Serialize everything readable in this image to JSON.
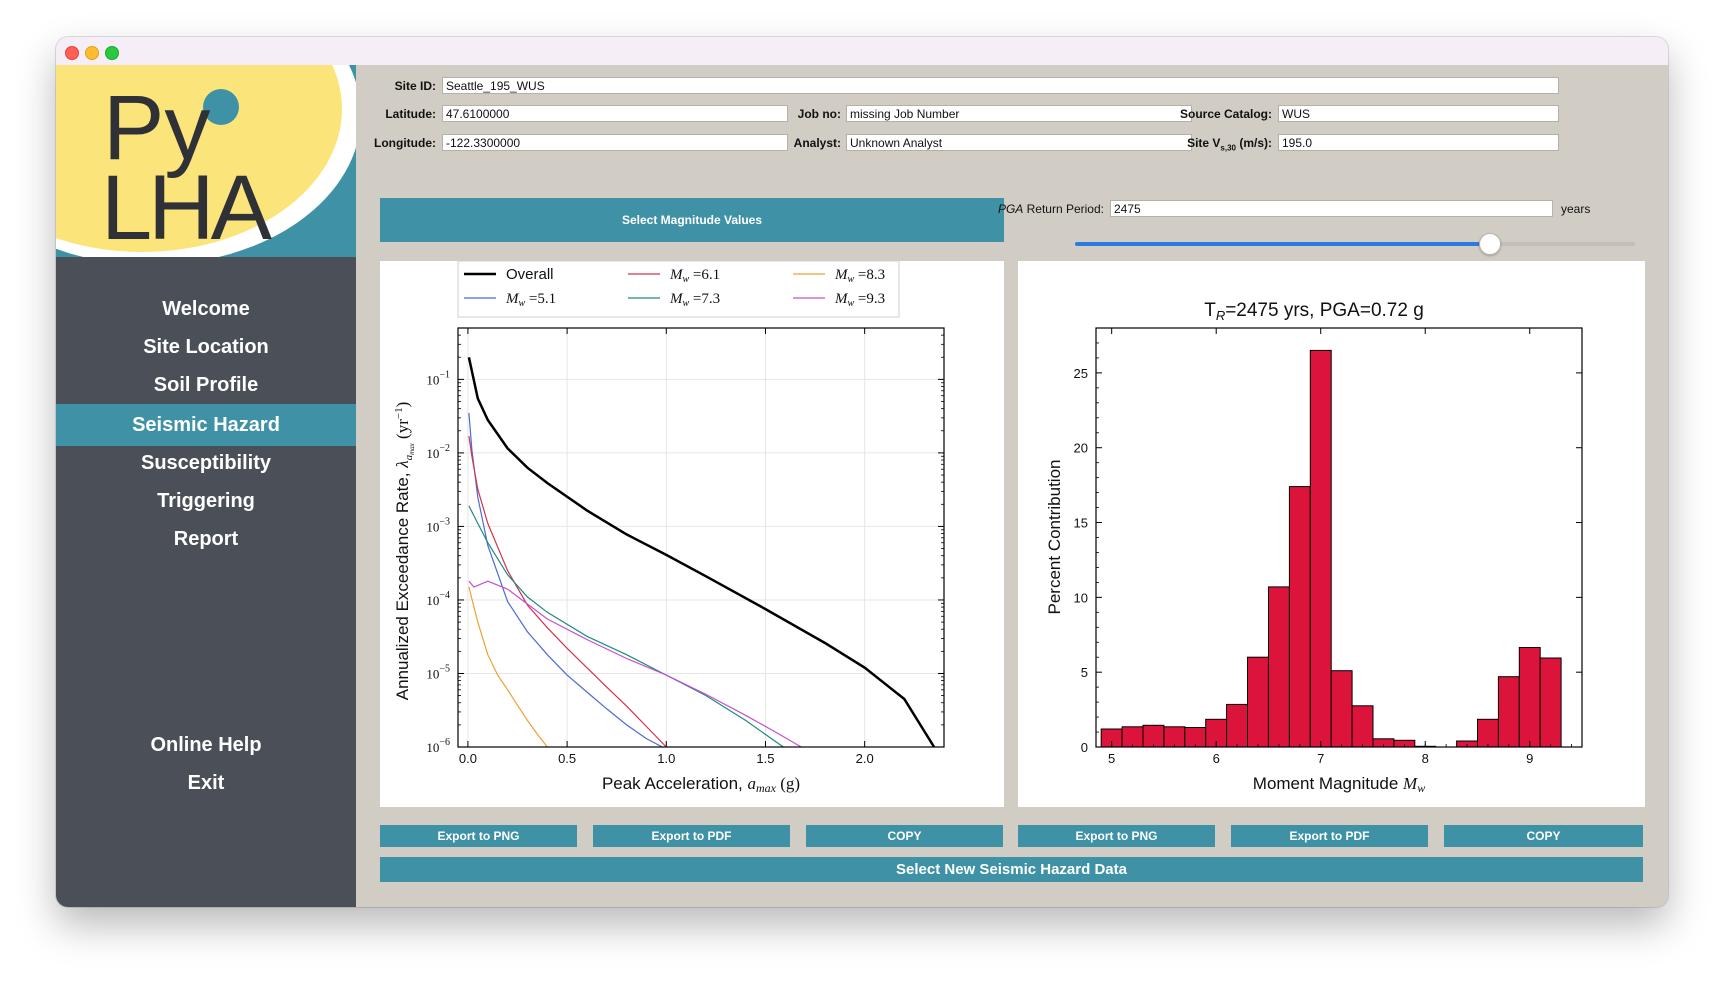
{
  "nav": {
    "items": [
      "Welcome",
      "Site Location",
      "Soil Profile",
      "Seismic Hazard",
      "Susceptibility",
      "Triggering",
      "Report"
    ],
    "bottom_items": [
      "Online Help",
      "Exit"
    ],
    "active": "Seismic Hazard"
  },
  "logo": {
    "text_py": "Py",
    "text_lha": "LHA"
  },
  "form": {
    "site_id_label": "Site ID:",
    "site_id": "Seattle_195_WUS",
    "latitude_label": "Latitude:",
    "latitude": "47.6100000",
    "longitude_label": "Longitude:",
    "longitude": "-122.3300000",
    "job_no_label": "Job no:",
    "job_no": "missing Job Number",
    "analyst_label": "Analyst:",
    "analyst": "Unknown Analyst",
    "source_catalog_label": "Source Catalog:",
    "source_catalog": "WUS",
    "site_vs_label_prefix": "Site V",
    "site_vs_label_sub": "s,30",
    "site_vs_label_suffix": " (m/s):",
    "site_vs": "195.0"
  },
  "controls": {
    "select_magnitude_label": "Select Magnitude Values",
    "return_period_label_italic": "PGA",
    "return_period_label": " Return Period:",
    "return_period_value": "2475",
    "return_period_unit": "years",
    "slider_fraction": 0.74
  },
  "buttons": {
    "export_png": "Export to PNG",
    "export_pdf": "Export to PDF",
    "copy": "COPY",
    "select_new": "Select New Seismic Hazard Data"
  },
  "colors": {
    "accent": "#3f92a6",
    "sidebar": "#4b5058",
    "logo_yellow": "#fbe57b",
    "bar": "#dc143c",
    "slider": "#2d7be0"
  },
  "chart_data": [
    {
      "type": "line",
      "xlabel": "Peak Acceleration, a_max (g)",
      "xlabel_main": "Peak Acceleration, ",
      "xlabel_var": "a",
      "xlabel_sub": "max",
      "xlabel_unit": " (g)",
      "ylabel_main": "Annualized Exceedance Rate, ",
      "ylabel_var": "λ",
      "ylabel_sub": "a",
      "ylabel_sub2": "max",
      "ylabel_unit": " (yr",
      "ylabel_exp": "−1",
      "ylabel_close": ")",
      "x_scale": "linear",
      "y_scale": "log",
      "xlim": [
        -0.05,
        2.4
      ],
      "ylim": [
        1e-06,
        0.5
      ],
      "xticks": [
        "0.0",
        "0.5",
        "1.0",
        "1.5",
        "2.0"
      ],
      "yticks_exp": [
        "−1",
        "−2",
        "−3",
        "−4",
        "−5",
        "−6"
      ],
      "ytick_base": "10",
      "grid": true,
      "legend_placement": "top",
      "series": [
        {
          "name": "Overall",
          "legend_var": "",
          "legend_val": "",
          "color": "#000000",
          "width": 2.5,
          "x": [
            0.005,
            0.05,
            0.1,
            0.2,
            0.3,
            0.4,
            0.6,
            0.8,
            1.0,
            1.2,
            1.5,
            1.8,
            2.0,
            2.2,
            2.35
          ],
          "y": [
            0.2,
            0.055,
            0.028,
            0.0115,
            0.0063,
            0.0039,
            0.00165,
            0.00078,
            0.00041,
            0.00021,
            7.5e-05,
            2.6e-05,
            1.2e-05,
            4.5e-06,
            1e-06
          ]
        },
        {
          "name": "Mw=5.1",
          "legend_var": "M",
          "legend_sub": "w",
          "legend_val": "5.1",
          "color": "#4a6cd4",
          "width": 1.2,
          "x": [
            0.005,
            0.02,
            0.05,
            0.1,
            0.2,
            0.3,
            0.4,
            0.5,
            0.6,
            0.7,
            0.8,
            0.9,
            0.98
          ],
          "y": [
            0.035,
            0.011,
            0.0025,
            0.00055,
            9.5e-05,
            3.7e-05,
            1.8e-05,
            9.5e-06,
            5.6e-06,
            3.3e-06,
            2e-06,
            1.3e-06,
            1e-06
          ]
        },
        {
          "name": "Mw=6.1",
          "legend_var": "M",
          "legend_sub": "w",
          "legend_val": "6.1",
          "color": "#d1344e",
          "width": 1.2,
          "x": [
            0.005,
            0.02,
            0.05,
            0.1,
            0.2,
            0.3,
            0.4,
            0.5,
            0.6,
            0.7,
            0.8,
            0.9,
            1.0
          ],
          "y": [
            0.017,
            0.009,
            0.0032,
            0.0011,
            0.00025,
            8.5e-05,
            4.2e-05,
            2.2e-05,
            1.2e-05,
            6.5e-06,
            3.6e-06,
            1.9e-06,
            1e-06
          ]
        },
        {
          "name": "Mw=7.3",
          "legend_var": "M",
          "legend_sub": "w",
          "legend_val": "7.3",
          "color": "#1e8b7f",
          "width": 1.2,
          "x": [
            0.005,
            0.05,
            0.1,
            0.2,
            0.3,
            0.4,
            0.6,
            0.8,
            1.0,
            1.2,
            1.4,
            1.59
          ],
          "y": [
            0.0019,
            0.0011,
            0.0006,
            0.00022,
            0.00011,
            6.8e-05,
            3.2e-05,
            1.8e-05,
            9.5e-06,
            5e-06,
            2.3e-06,
            1e-06
          ]
        },
        {
          "name": "Mw=8.3",
          "legend_var": "M",
          "legend_sub": "w",
          "legend_val": "8.3",
          "color": "#f0a030",
          "width": 1.2,
          "x": [
            0.005,
            0.05,
            0.1,
            0.15,
            0.2,
            0.25,
            0.3,
            0.35,
            0.4
          ],
          "y": [
            0.00015,
            5e-05,
            1.8e-05,
            9.5e-06,
            6e-06,
            3.7e-06,
            2.3e-06,
            1.5e-06,
            1e-06
          ]
        },
        {
          "name": "Mw=9.3",
          "legend_var": "M",
          "legend_sub": "w",
          "legend_val": "9.3",
          "color": "#c44fd6",
          "width": 1.2,
          "x": [
            0.005,
            0.03,
            0.1,
            0.2,
            0.3,
            0.4,
            0.6,
            0.8,
            1.0,
            1.2,
            1.4,
            1.55,
            1.68
          ],
          "y": [
            0.00018,
            0.00015,
            0.00018,
            0.00014,
            8.8e-05,
            5.5e-05,
            2.9e-05,
            1.6e-05,
            9.5e-06,
            5.2e-06,
            2.7e-06,
            1.6e-06,
            1e-06
          ]
        }
      ]
    },
    {
      "type": "bar",
      "title_prefix": "T",
      "title_sub": "R",
      "title_mid": "=2475 yrs,   PGA=0.72 g",
      "xlabel_main": "Moment Magnitude ",
      "xlabel_var": "M",
      "xlabel_sub": "w",
      "ylabel": "Percent Contribution",
      "xlim": [
        4.85,
        9.5
      ],
      "ylim": [
        0,
        28.0
      ],
      "xticks": [
        "5",
        "6",
        "7",
        "8",
        "9"
      ],
      "yticks": [
        "0",
        "5",
        "10",
        "15",
        "20",
        "25"
      ],
      "bin_width": 0.2,
      "x": [
        5.0,
        5.2,
        5.4,
        5.6,
        5.8,
        6.0,
        6.2,
        6.4,
        6.6,
        6.8,
        7.0,
        7.2,
        7.4,
        7.6,
        7.8,
        8.0,
        8.2,
        8.4,
        8.6,
        8.8,
        9.0,
        9.2
      ],
      "values": [
        1.2,
        1.35,
        1.45,
        1.35,
        1.3,
        1.85,
        2.85,
        6.0,
        10.7,
        17.4,
        26.5,
        5.1,
        2.75,
        0.55,
        0.45,
        0.05,
        0.0,
        0.4,
        1.85,
        4.7,
        6.65,
        5.95
      ],
      "color": "#dc143c"
    }
  ]
}
